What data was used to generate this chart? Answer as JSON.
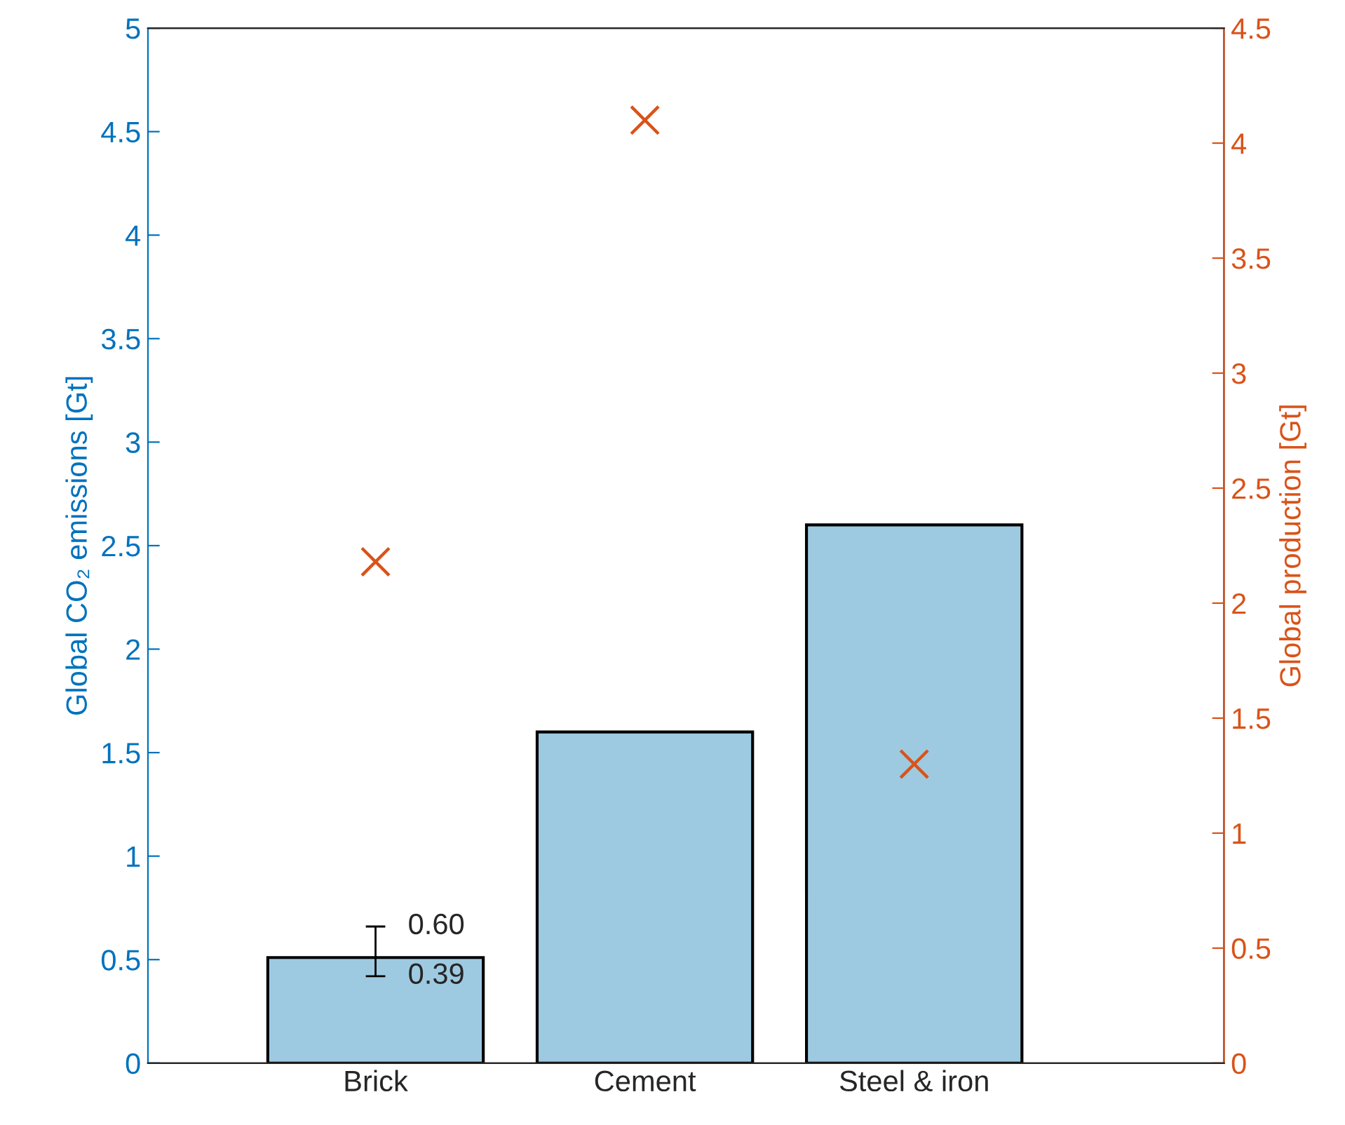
{
  "chart_data": {
    "type": "bar",
    "categories": [
      "Brick",
      "Cement",
      "Steel & iron"
    ],
    "series": [
      {
        "color": "#9ecae1",
        "values": [
          0.51,
          1.6,
          2.6
        ],
        "errors": [
          [
            0.42,
            0.66
          ],
          null,
          null
        ]
      },
      {
        "type": "scatter",
        "axis": "y2",
        "color": "#d95319",
        "marker": "cross",
        "values": [
          2.18,
          4.1,
          1.3
        ]
      }
    ],
    "ylabel": "Global CO₂ emissions [Gt]",
    "y2label": "Global production [Gt]",
    "ylim": [
      0,
      5
    ],
    "yticks": [
      0,
      0.5,
      1,
      1.5,
      2,
      2.5,
      3,
      3.5,
      4,
      4.5,
      5
    ],
    "y2lim": [
      0,
      4.5
    ],
    "y2ticks": [
      0,
      0.5,
      1,
      1.5,
      2,
      2.5,
      3,
      3.5,
      4,
      4.5
    ],
    "annotations": [
      "0.60",
      "0.39"
    ],
    "grid": false,
    "legend": false
  }
}
